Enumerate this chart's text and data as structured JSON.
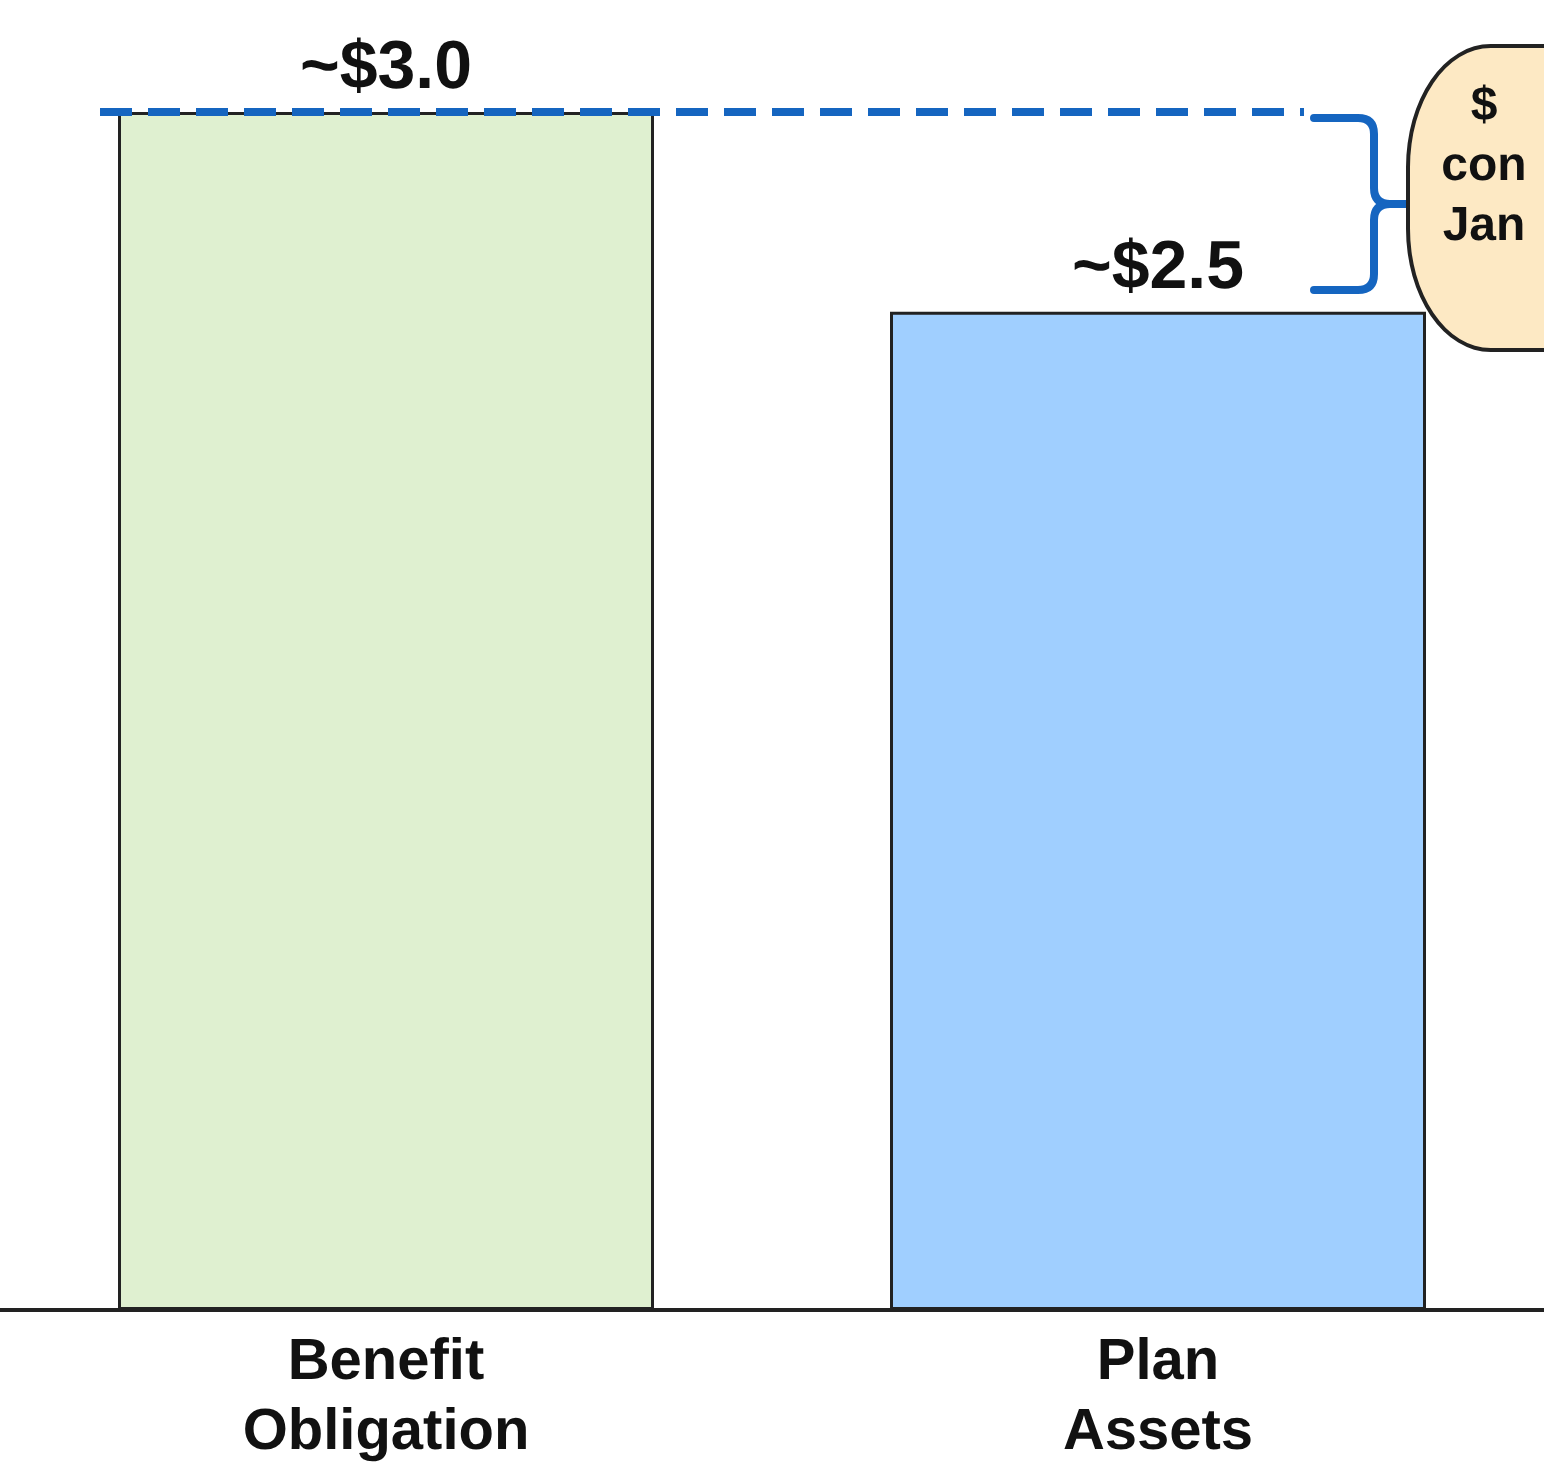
{
  "chart_data": {
    "type": "bar",
    "categories": [
      "Benefit\nObligation",
      "Plan\nAssets"
    ],
    "values": [
      3.0,
      2.5
    ],
    "colors": [
      "#dff0d0",
      "#a0cfff"
    ],
    "value_labels": [
      "~$3.0",
      "~$2.5"
    ],
    "ref_lines": [
      {
        "axis": "y",
        "value": 3.0,
        "color": "#1565c0",
        "line_style": "dashed"
      }
    ],
    "annotations": [
      "$\ncon\nJan"
    ],
    "grid": false
  }
}
